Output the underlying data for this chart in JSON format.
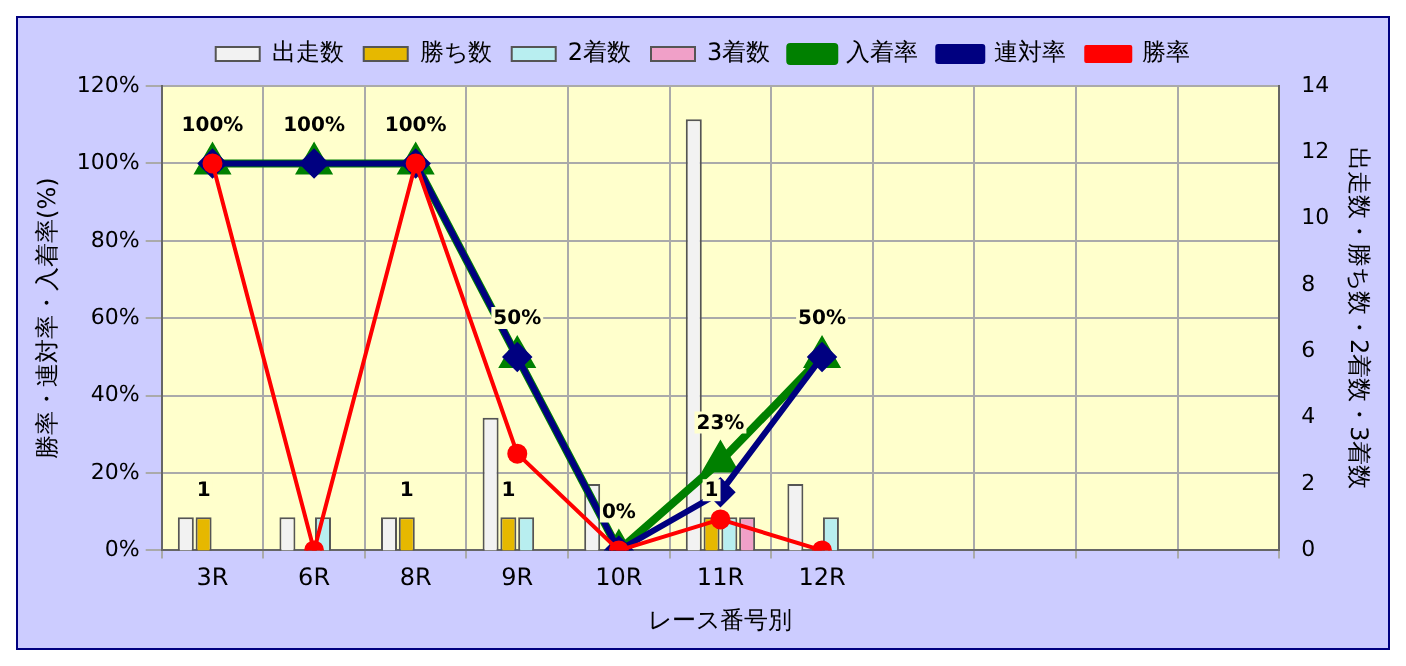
{
  "chart_data": {
    "type": "bar",
    "xlabel": "レース番号別",
    "ylabel": "勝率・連対率・入着率(%)",
    "y2label": "出走数・勝ち数・2着数・3着数",
    "categories": [
      "3R",
      "6R",
      "8R",
      "9R",
      "10R",
      "11R",
      "12R",
      null,
      null,
      null,
      null
    ],
    "series": [
      {
        "name": "出走数",
        "axis": "y2",
        "color": "#f2f2f2",
        "values": [
          1,
          1,
          1,
          4,
          2,
          13,
          2,
          null,
          null,
          null,
          null
        ]
      },
      {
        "name": "勝ち数",
        "axis": "y2",
        "color": "#e6b800",
        "values": [
          1,
          0,
          1,
          1,
          0,
          1,
          0,
          null,
          null,
          null,
          null
        ],
        "value_labels": [
          "1",
          null,
          "1",
          "1",
          null,
          "1",
          null,
          null,
          null,
          null,
          null
        ]
      },
      {
        "name": "2着数",
        "axis": "y2",
        "color": "#b8eef0",
        "values": [
          0,
          1,
          0,
          1,
          0,
          1,
          1,
          null,
          null,
          null,
          null
        ]
      },
      {
        "name": "3着数",
        "axis": "y2",
        "color": "#f0a0c8",
        "values": [
          0,
          0,
          0,
          0,
          0,
          1,
          0,
          null,
          null,
          null,
          null
        ]
      },
      {
        "name": "入着率",
        "type": "line",
        "axis": "y",
        "color": "#008000",
        "marker": "triangle",
        "values": [
          100,
          100,
          100,
          50,
          0,
          23,
          50,
          null,
          null,
          null,
          null
        ],
        "value_labels": [
          "100%",
          "100%",
          "100%",
          "50%",
          "0%",
          "23%",
          "50%",
          null,
          null,
          null,
          null
        ]
      },
      {
        "name": "連対率",
        "type": "line",
        "axis": "y",
        "color": "#000080",
        "marker": "diamond",
        "values": [
          100,
          100,
          100,
          50,
          0,
          15,
          50,
          null,
          null,
          null,
          null
        ]
      },
      {
        "name": "勝率",
        "type": "line",
        "axis": "y",
        "color": "#ff0000",
        "marker": "circle",
        "values": [
          100,
          0,
          100,
          25,
          0,
          8,
          0,
          null,
          null,
          null,
          null
        ]
      }
    ],
    "ylim": [
      0,
      120
    ],
    "yticks": [
      {
        "value": 0,
        "label": "0%"
      },
      {
        "value": 20,
        "label": "20%"
      },
      {
        "value": 40,
        "label": "40%"
      },
      {
        "value": 60,
        "label": "60%"
      },
      {
        "value": 80,
        "label": "80%"
      },
      {
        "value": 100,
        "label": "100%"
      },
      {
        "value": 120,
        "label": "120%"
      }
    ],
    "y2lim": [
      0,
      14
    ],
    "y2ticks": [
      0,
      2,
      4,
      6,
      8,
      10,
      12,
      14
    ],
    "grid": true,
    "legend": "top",
    "line_style": "solid"
  }
}
